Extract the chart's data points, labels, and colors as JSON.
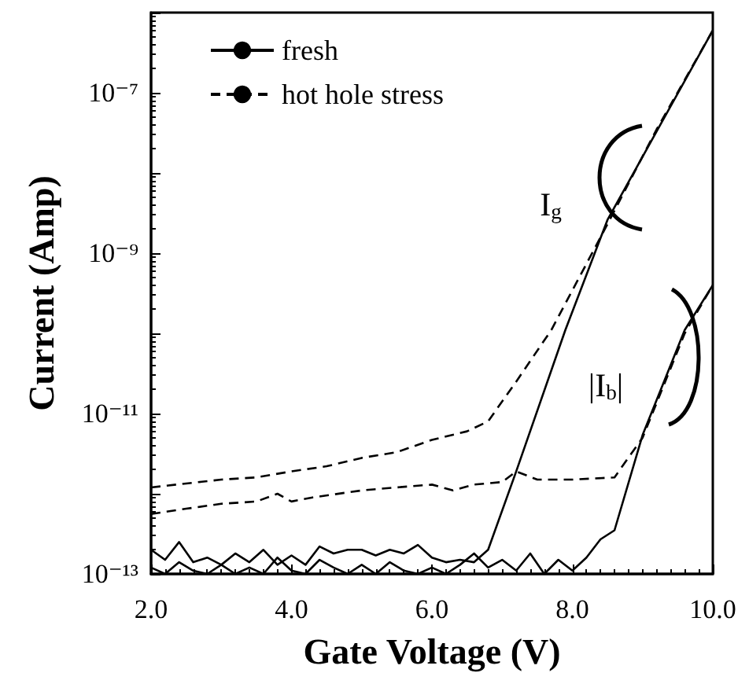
{
  "chart_data": {
    "type": "line",
    "xlabel": "Gate Voltage (V)",
    "ylabel": "Current (Amp)",
    "xlim": [
      2.0,
      10.0
    ],
    "xticks": [
      {
        "value": 2,
        "label": "2.0"
      },
      {
        "value": 4,
        "label": "4.0"
      },
      {
        "value": 6,
        "label": "6.0"
      },
      {
        "value": 8,
        "label": "8.0"
      },
      {
        "value": 10,
        "label": "10.0"
      }
    ],
    "ylim": [
      1e-13,
      1e-06
    ],
    "yticks": [
      {
        "value": 1e-13,
        "label": "10⁻¹³"
      },
      {
        "value": 1e-12,
        "label": null
      },
      {
        "value": 1e-11,
        "label": "10⁻¹¹"
      },
      {
        "value": 1e-10,
        "label": null
      },
      {
        "value": 1e-09,
        "label": "10⁻⁹"
      },
      {
        "value": 1e-08,
        "label": null
      },
      {
        "value": 1e-07,
        "label": "10⁻⁷"
      },
      {
        "value": 1e-06,
        "label": null
      }
    ],
    "log": "y",
    "grid": false,
    "legend": "top left",
    "marker": "none",
    "series": [
      {
        "name": "fresh",
        "color": "#000000",
        "line_style": "solid",
        "x": [
          2.0,
          2.2,
          2.4,
          2.6,
          2.8,
          3.0,
          3.2,
          3.4,
          3.6,
          3.8,
          4.0,
          4.2,
          4.4,
          4.6,
          4.8,
          5.0,
          5.2,
          5.4,
          5.6,
          5.8,
          6.0,
          6.2,
          6.4,
          6.6,
          6.8,
          7.2,
          7.9,
          8.5,
          9.2,
          10.0
        ],
        "values": [
          2e-13,
          1.5e-13,
          2.5e-13,
          1.4e-13,
          1.6e-13,
          1.3e-13,
          1.8e-13,
          1.4e-13,
          2e-13,
          1.3e-13,
          1.7e-13,
          1.3e-13,
          2.2e-13,
          1.8e-13,
          2e-13,
          2e-13,
          1.7e-13,
          2e-13,
          1.8e-13,
          2.3e-13,
          1.6e-13,
          1.4e-13,
          1.5e-13,
          1.4e-13,
          2e-13,
          1.9e-12,
          1.1e-10,
          2.6e-09,
          3.3e-08,
          6e-07
        ]
      },
      {
        "name": "hot hole stress",
        "color": "#000000",
        "line_style": "dashed",
        "x": [
          2.0,
          3.0,
          3.5,
          4.0,
          4.5,
          5.0,
          5.5,
          6.0,
          6.5,
          6.8,
          7.2,
          7.7,
          8.5,
          9.2,
          10.0
        ],
        "values": [
          1.2e-12,
          1.5e-12,
          1.6e-12,
          1.9e-12,
          2.2e-12,
          2.8e-12,
          3.3e-12,
          4.7e-12,
          6e-12,
          8e-12,
          2.5e-11,
          1.1e-10,
          2.3e-09,
          3.5e-08,
          6e-07
        ]
      },
      {
        "color": "#000000",
        "line_style": "solid",
        "x": [
          2.0,
          2.2,
          2.4,
          2.6,
          2.8,
          3.0,
          3.2,
          3.4,
          3.6,
          3.8,
          4.0,
          4.2,
          4.4,
          4.6,
          4.8,
          5.0,
          5.2,
          5.4,
          5.6,
          5.8,
          6.0,
          6.2,
          6.4,
          6.6,
          6.8,
          7.0,
          7.2,
          7.4,
          7.6,
          7.8,
          8.0,
          8.2,
          8.4,
          8.6,
          9.0,
          9.6,
          10.0
        ],
        "values": [
          1.2e-13,
          1e-13,
          1.4e-13,
          1.1e-13,
          1e-13,
          1.3e-13,
          1e-13,
          1.2e-13,
          1e-13,
          1.6e-13,
          1.1e-13,
          1e-13,
          1.5e-13,
          1.2e-13,
          1e-13,
          1.3e-13,
          1e-13,
          1.4e-13,
          1.1e-13,
          1e-13,
          1.2e-13,
          1e-13,
          1.3e-13,
          1.8e-13,
          1.2e-13,
          1.5e-13,
          1.1e-13,
          1.8e-13,
          1e-13,
          1.5e-13,
          1.1e-13,
          1.6e-13,
          2.7e-13,
          3.5e-13,
          5.4e-12,
          1.1e-10,
          4e-10
        ]
      },
      {
        "color": "#000000",
        "line_style": "dashed",
        "x": [
          2.0,
          2.5,
          3.0,
          3.5,
          3.8,
          4.0,
          4.3,
          5.0,
          5.5,
          6.0,
          6.3,
          6.6,
          7.0,
          7.2,
          7.5,
          8.0,
          8.6,
          9.0,
          9.6,
          10.0
        ],
        "values": [
          5.6e-13,
          6.5e-13,
          7.5e-13,
          8e-13,
          1e-12,
          8e-13,
          9e-13,
          1.1e-12,
          1.2e-12,
          1.3e-12,
          1.1e-12,
          1.3e-12,
          1.4e-12,
          1.9e-12,
          1.5e-12,
          1.5e-12,
          1.6e-12,
          5e-12,
          1e-10,
          4e-10
        ]
      }
    ],
    "annotations": [
      "I$_{g}$",
      "|I$_{b}$|"
    ]
  }
}
